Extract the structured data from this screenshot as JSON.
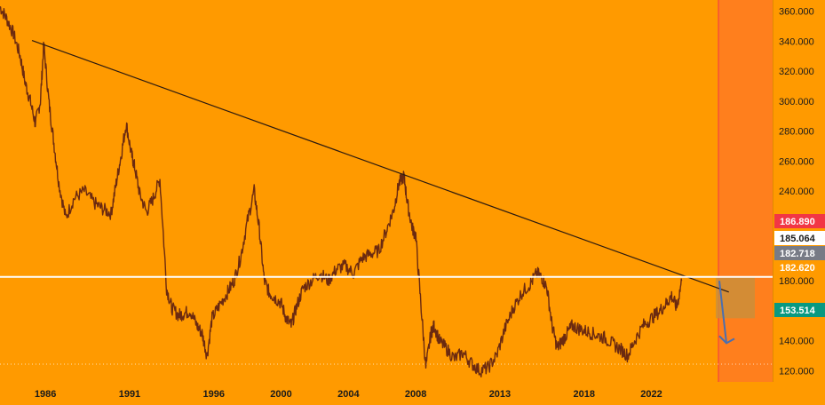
{
  "chart_data": {
    "type": "line",
    "title": "",
    "xlabel": "",
    "ylabel": "",
    "x_ticks": [
      "1986",
      "1991",
      "1996",
      "2000",
      "2004",
      "2008",
      "2013",
      "2018",
      "2022"
    ],
    "y_ticks": [
      "120.000",
      "140.000",
      "160.000",
      "180.000",
      "200.000",
      "220.000",
      "240.000",
      "260.000",
      "280.000",
      "300.000",
      "320.000",
      "340.000",
      "360.000"
    ],
    "xlim": [
      1983.3,
      2029.2
    ],
    "ylim": [
      112.5,
      367.5
    ],
    "grid": false,
    "series": [
      {
        "x": [
          1983.3,
          1983.7,
          1984.1,
          1984.5,
          1984.8,
          1985.1,
          1985.4,
          1985.7,
          1985.9,
          1986.2,
          1986.5,
          1986.8,
          1987.2,
          1987.7,
          1988.3,
          1988.9,
          1989.4,
          1989.9,
          1990.2,
          1990.5,
          1990.8,
          1991.1,
          1991.3,
          1991.6,
          1992.0,
          1992.4,
          1992.8,
          1993.2,
          1993.5,
          1993.9,
          1994.2,
          1994.6,
          1995.0,
          1995.3,
          1995.6,
          1995.9,
          1996.3,
          1996.8,
          1997.2,
          1997.6,
          1998.0,
          1998.4,
          1998.7,
          1999.0,
          1999.3,
          1999.6,
          2000.0,
          2000.3,
          2000.6,
          2000.9,
          2001.3,
          2001.8,
          2002.3,
          2002.8,
          2003.3,
          2003.8,
          2004.3,
          2004.8,
          2005.3,
          2005.8,
          2006.3,
          2006.7,
          2007.0,
          2007.3,
          2007.5,
          2007.8,
          2008.0,
          2008.3,
          2008.6,
          2008.9,
          2009.1,
          2009.4,
          2009.8,
          2010.3,
          2010.8,
          2011.3,
          2011.8,
          2012.3,
          2012.8,
          2013.3,
          2013.8,
          2014.3,
          2014.8,
          2015.2,
          2015.5,
          2015.8,
          2016.1,
          2016.4,
          2016.7,
          2017.0,
          2017.3,
          2017.7,
          2018.2,
          2018.7,
          2019.2,
          2019.7,
          2020.2,
          2020.6,
          2021.0,
          2021.5,
          2022.0,
          2022.5,
          2022.9,
          2023.2,
          2023.5,
          2023.8
        ],
        "y": [
          363,
          355,
          345,
          330,
          312,
          300,
          285,
          300,
          338,
          300,
          272,
          245,
          222,
          235,
          240,
          232,
          228,
          225,
          245,
          264,
          285,
          265,
          256,
          238,
          226,
          235,
          248,
          175,
          162,
          157,
          158,
          160,
          150,
          145,
          130,
          155,
          163,
          172,
          180,
          196,
          220,
          240,
          215,
          180,
          172,
          169,
          165,
          155,
          150,
          162,
          175,
          180,
          185,
          180,
          188,
          190,
          185,
          195,
          198,
          200,
          215,
          228,
          245,
          250,
          232,
          215,
          210,
          165,
          122,
          145,
          150,
          140,
          135,
          128,
          132,
          125,
          120,
          122,
          130,
          148,
          162,
          172,
          178,
          185,
          182,
          175,
          150,
          135,
          140,
          145,
          150,
          148,
          146,
          144,
          142,
          138,
          134,
          130,
          140,
          150,
          155,
          160,
          165,
          170,
          162,
          180
        ]
      }
    ],
    "trendline": {
      "x": [
        1985.2,
        2026.6
      ],
      "y": [
        340.5,
        172.5
      ]
    },
    "horizontal_level": 182.62,
    "projection_arrow": {
      "from": [
        2023.8,
        180
      ],
      "to": [
        2024.5,
        155
      ]
    },
    "price_badges": [
      {
        "label": "186.890",
        "value": 186.89,
        "bg": "#F23645",
        "fg": "#ffffff"
      },
      {
        "label": "185.064",
        "value": 185.064,
        "bg": "#ffffff",
        "fg": "#1a1a1a"
      },
      {
        "label": "182.718",
        "value": 182.718,
        "bg": "#787B86",
        "fg": "#ffffff"
      },
      {
        "label": "182.620",
        "value": 182.62,
        "bg": "#FF9A00",
        "fg": "#ffffff"
      },
      {
        "label": "153.514",
        "value": 153.514,
        "bg": "#089981",
        "fg": "#ffffff"
      }
    ],
    "colors": {
      "background": "#FF9A00",
      "series": "#6b2a10",
      "trendline": "#2b1a10",
      "level": "#ffffff",
      "future_zone": "#FF7A22",
      "future_edge": "#F23645",
      "box": "#c8903c",
      "arrow": "#4a6fb0"
    }
  }
}
